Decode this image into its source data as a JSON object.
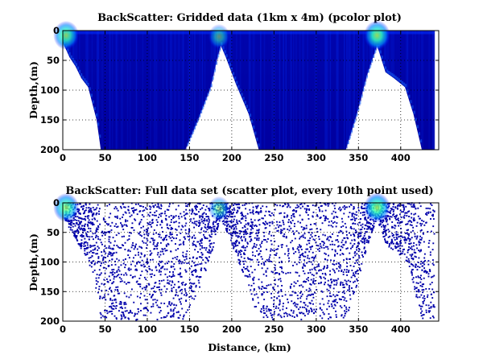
{
  "chart_data": [
    {
      "type": "heatmap",
      "title": "BackScatter: Gridded data (1km x 4m) (pcolor plot)",
      "xlabel": "",
      "ylabel": "Depth,(m)",
      "xlim": [
        0,
        445
      ],
      "ylim": [
        0,
        200
      ],
      "y_reversed": true,
      "xticks": [
        0,
        50,
        100,
        150,
        200,
        250,
        300,
        350,
        400
      ],
      "yticks": [
        0,
        50,
        100,
        150,
        200
      ],
      "grid": true,
      "colormap": [
        "#00008f",
        "#0000ff",
        "#0080ff",
        "#00ffff",
        "#80ff80"
      ],
      "data_boundary": [
        {
          "x": 0,
          "depth": 20
        },
        {
          "x": 8,
          "depth": 45
        },
        {
          "x": 15,
          "depth": 60
        },
        {
          "x": 22,
          "depth": 80
        },
        {
          "x": 30,
          "depth": 95
        },
        {
          "x": 40,
          "depth": 150
        },
        {
          "x": 45,
          "depth": 200
        },
        {
          "x": 145,
          "depth": 200
        },
        {
          "x": 160,
          "depth": 150
        },
        {
          "x": 175,
          "depth": 95
        },
        {
          "x": 183,
          "depth": 45
        },
        {
          "x": 187,
          "depth": 25
        },
        {
          "x": 193,
          "depth": 45
        },
        {
          "x": 205,
          "depth": 90
        },
        {
          "x": 220,
          "depth": 140
        },
        {
          "x": 232,
          "depth": 200
        },
        {
          "x": 335,
          "depth": 200
        },
        {
          "x": 348,
          "depth": 140
        },
        {
          "x": 360,
          "depth": 75
        },
        {
          "x": 372,
          "depth": 25
        },
        {
          "x": 382,
          "depth": 70
        },
        {
          "x": 392,
          "depth": 80
        },
        {
          "x": 405,
          "depth": 95
        },
        {
          "x": 415,
          "depth": 140
        },
        {
          "x": 425,
          "depth": 200
        },
        {
          "x": 440,
          "depth": 200
        },
        {
          "x": 440,
          "depth": 0
        }
      ],
      "hotspots": [
        {
          "x": 4,
          "depth": 8,
          "level": 0.8
        },
        {
          "x": 185,
          "depth": 10,
          "level": 0.55
        },
        {
          "x": 372,
          "depth": 8,
          "level": 0.85
        }
      ]
    },
    {
      "type": "scatter",
      "title": "BackScatter: Full data set (scatter plot, every 10th point used)",
      "xlabel": "Distance, (km)",
      "ylabel": "Depth,(m)",
      "xlim": [
        0,
        445
      ],
      "ylim": [
        0,
        200
      ],
      "y_reversed": true,
      "xticks": [
        0,
        50,
        100,
        150,
        200,
        250,
        300,
        350,
        400
      ],
      "yticks": [
        0,
        50,
        100,
        150,
        200
      ],
      "grid": true,
      "point_color": "#0000aa",
      "hotspots": [
        {
          "x": 4,
          "depth": 8,
          "level": 0.8
        },
        {
          "x": 185,
          "depth": 10,
          "level": 0.55
        },
        {
          "x": 372,
          "depth": 8,
          "level": 0.85
        }
      ]
    }
  ]
}
